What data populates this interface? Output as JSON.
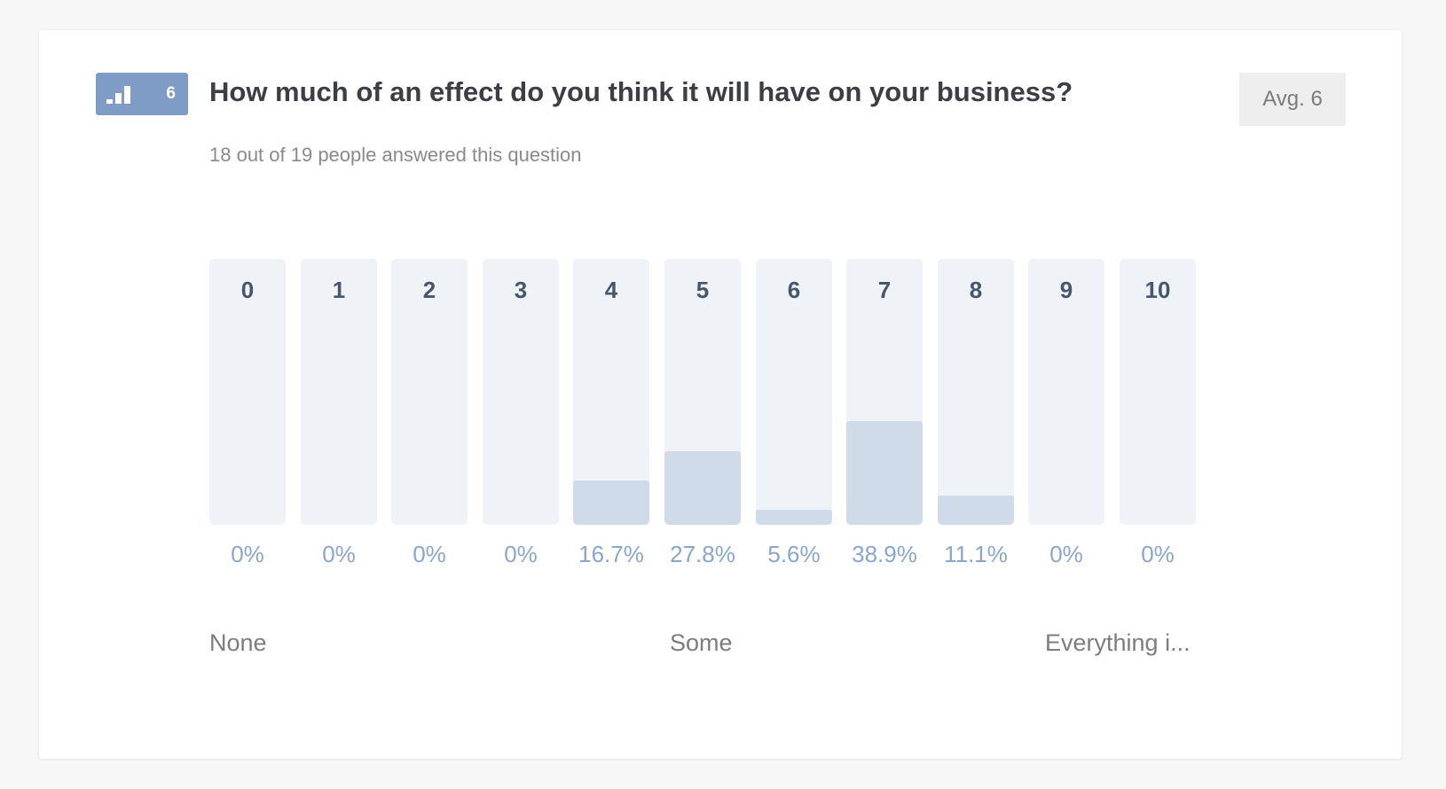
{
  "question": {
    "badge_number": "6",
    "title": "How much of an effect do you think it will have on your business?",
    "subtitle": "18 out of 19 people answered this question",
    "average": "Avg. 6"
  },
  "scale_labels": {
    "low": "None",
    "mid": "Some",
    "high": "Everything i..."
  },
  "colors": {
    "badge": "#7e9cc6",
    "bar_track": "#eff3f8",
    "bar_fill": "#cfdbe9",
    "percent_text": "#8aa6ca"
  },
  "chart_data": {
    "type": "bar",
    "categories": [
      "0",
      "1",
      "2",
      "3",
      "4",
      "5",
      "6",
      "7",
      "8",
      "9",
      "10"
    ],
    "values": [
      0,
      0,
      0,
      0,
      16.7,
      27.8,
      5.6,
      38.9,
      11.1,
      0,
      0
    ],
    "value_labels": [
      "0%",
      "0%",
      "0%",
      "0%",
      "16.7%",
      "27.8%",
      "5.6%",
      "38.9%",
      "11.1%",
      "0%",
      "0%"
    ],
    "ylim": [
      0,
      100
    ]
  }
}
